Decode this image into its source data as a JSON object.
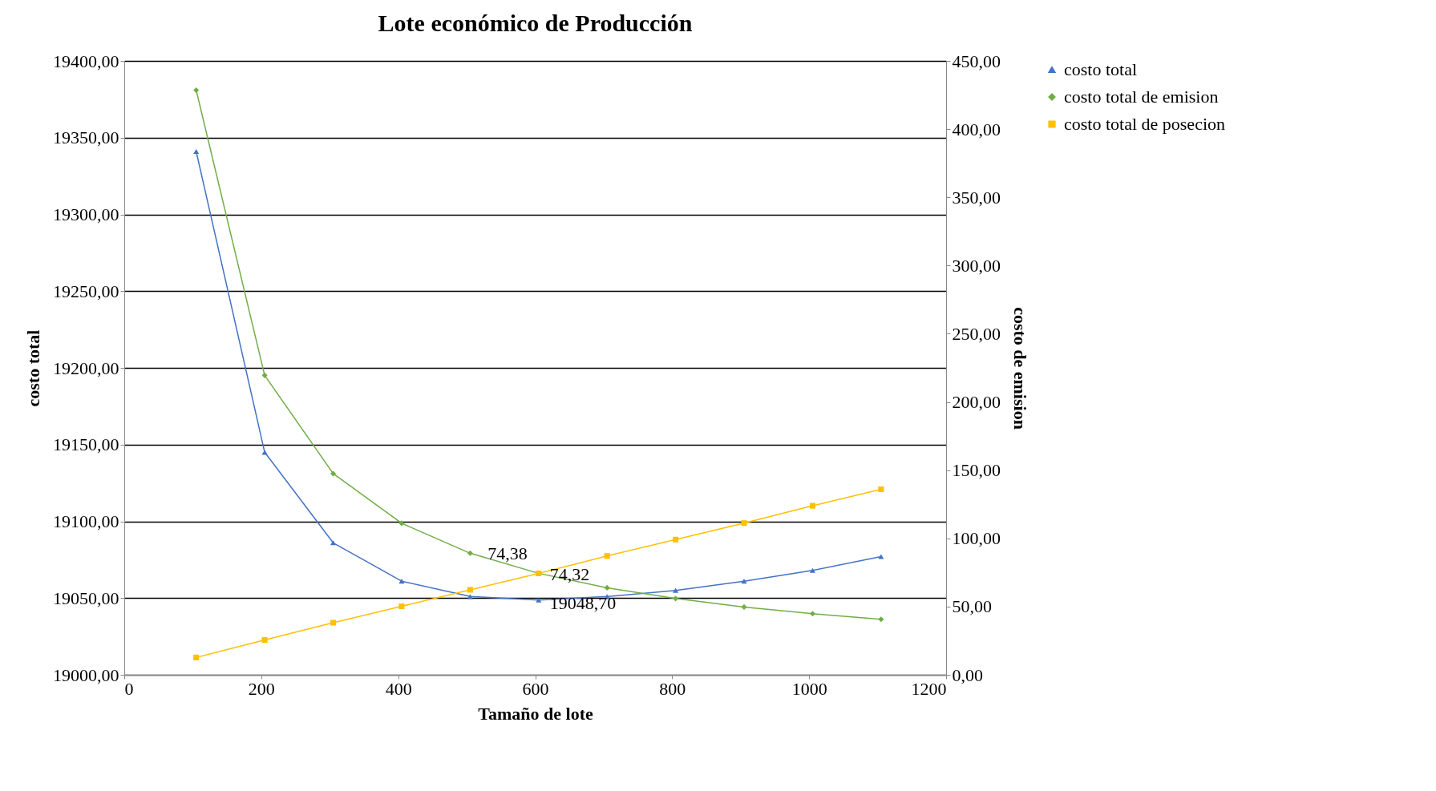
{
  "chart_data": {
    "type": "line",
    "title": "Lote económico de Producción",
    "xlabel": "Tamaño de lote",
    "ylabel": "costo total",
    "y2label": "costo de emision",
    "x": [
      105,
      205,
      305,
      405,
      505,
      605,
      705,
      805,
      905,
      1005,
      1105
    ],
    "xlim": [
      0,
      1200
    ],
    "xticks": [
      0,
      200,
      400,
      600,
      800,
      1000,
      1200
    ],
    "ylim": [
      19000,
      19400
    ],
    "yticks": [
      {
        "value": 19000,
        "label": "19000,00"
      },
      {
        "value": 19050,
        "label": "19050,00"
      },
      {
        "value": 19100,
        "label": "19100,00"
      },
      {
        "value": 19150,
        "label": "19150,00"
      },
      {
        "value": 19200,
        "label": "19200,00"
      },
      {
        "value": 19250,
        "label": "19250,00"
      },
      {
        "value": 19300,
        "label": "19300,00"
      },
      {
        "value": 19350,
        "label": "19350,00"
      },
      {
        "value": 19400,
        "label": "19400,00"
      }
    ],
    "y2lim": [
      0,
      450
    ],
    "y2ticks": [
      {
        "value": 0,
        "label": "0,00"
      },
      {
        "value": 50,
        "label": "50,00"
      },
      {
        "value": 100,
        "label": "100,00"
      },
      {
        "value": 150,
        "label": "150,00"
      },
      {
        "value": 200,
        "label": "200,00"
      },
      {
        "value": 250,
        "label": "250,00"
      },
      {
        "value": 300,
        "label": "300,00"
      },
      {
        "value": 350,
        "label": "350,00"
      },
      {
        "value": 400,
        "label": "400,00"
      },
      {
        "value": 450,
        "label": "450,00"
      }
    ],
    "grid": "y",
    "legend": "right",
    "series": [
      {
        "name": "costo total",
        "color": "#4472c4",
        "marker": "triangle",
        "values": [
          19341,
          19145,
          19086,
          19061,
          19051,
          19048.7,
          19051,
          19055,
          19061,
          19068,
          19077
        ],
        "value_labels": [
          null,
          null,
          null,
          null,
          null,
          "19048,70",
          null,
          null,
          null,
          null,
          null
        ]
      },
      {
        "name": "costo total de emision",
        "color": "#70ad47",
        "marker": "diamond",
        "axis": "y2",
        "values": [
          428.6,
          219.5,
          147.5,
          111.1,
          89.1,
          74.38,
          63.8,
          55.9,
          49.7,
          44.8,
          40.7
        ],
        "value_labels": [
          null,
          null,
          null,
          null,
          null,
          "74,38",
          null,
          null,
          null,
          null,
          null
        ]
      },
      {
        "name": "costo total de posecion",
        "color": "#ffc000",
        "marker": "square",
        "axis": "y2",
        "values": [
          12.7,
          25.5,
          38.2,
          50.2,
          62.3,
          74.32,
          87.1,
          99.1,
          111.2,
          123.9,
          136.0
        ],
        "value_labels": [
          null,
          null,
          null,
          null,
          null,
          "74,32",
          null,
          null,
          null,
          null,
          null
        ]
      }
    ]
  }
}
